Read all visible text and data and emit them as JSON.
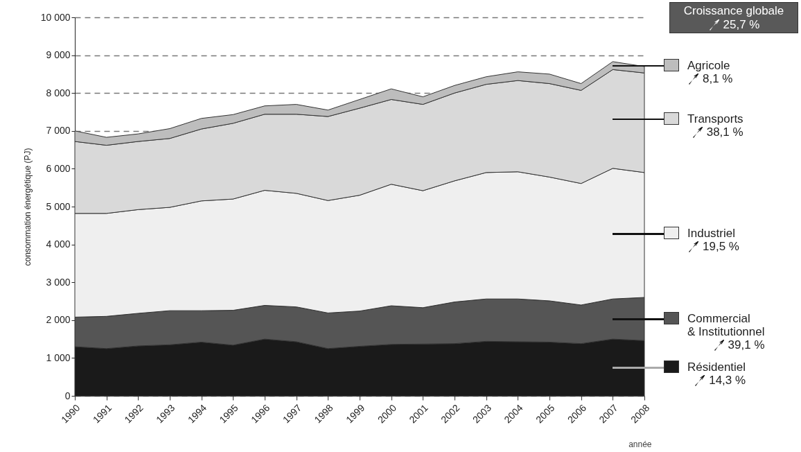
{
  "chart_data": {
    "type": "area",
    "stacked": true,
    "ylabel": "consommation énergétique (PJ)",
    "xlabel": "année",
    "categories": [
      "1990",
      "1991",
      "1992",
      "1993",
      "1994",
      "1995",
      "1996",
      "1997",
      "1998",
      "1999",
      "2000",
      "2001",
      "2002",
      "2003",
      "2004",
      "2005",
      "2006",
      "2007",
      "2008"
    ],
    "series": [
      {
        "name": "Résidentiel",
        "color": "#1a1a1a",
        "values": [
          1300,
          1250,
          1320,
          1350,
          1420,
          1340,
          1500,
          1430,
          1250,
          1310,
          1360,
          1370,
          1380,
          1440,
          1430,
          1420,
          1380,
          1500,
          1460
        ]
      },
      {
        "name": "Commercial\n& Institutionnel",
        "color": "#555555",
        "values": [
          780,
          850,
          860,
          900,
          830,
          920,
          890,
          920,
          940,
          930,
          1020,
          960,
          1100,
          1120,
          1130,
          1090,
          1020,
          1060,
          1140
        ]
      },
      {
        "name": "Industriel",
        "color": "#efefef",
        "values": [
          2740,
          2720,
          2740,
          2730,
          2900,
          2940,
          3040,
          3000,
          2970,
          3060,
          3210,
          3090,
          3200,
          3340,
          3360,
          3270,
          3210,
          3450,
          3300
        ]
      },
      {
        "name": "Transports",
        "color": "#d9d9d9",
        "values": [
          1900,
          1800,
          1800,
          1820,
          1900,
          2000,
          2010,
          2090,
          2220,
          2300,
          2240,
          2280,
          2320,
          2330,
          2410,
          2470,
          2460,
          2610,
          2630
        ]
      },
      {
        "name": "Agricole",
        "color": "#bdbdbd",
        "values": [
          280,
          210,
          200,
          260,
          280,
          230,
          220,
          260,
          170,
          230,
          280,
          200,
          200,
          200,
          230,
          250,
          180,
          210,
          170
        ]
      }
    ],
    "ylim": [
      0,
      10000
    ],
    "yticks": [
      0,
      {
        "value": 1000,
        "label": "1 000"
      },
      {
        "value": 2000,
        "label": "2 000"
      },
      {
        "value": 3000,
        "label": "3 000"
      },
      {
        "value": 4000,
        "label": "4 000"
      },
      {
        "value": 5000,
        "label": "5 000"
      },
      {
        "value": 6000,
        "label": "6 000"
      },
      {
        "value": 7000,
        "label": "7 000"
      },
      {
        "value": 8000,
        "label": "8 000"
      },
      {
        "value": 9000,
        "label": "9 000"
      },
      {
        "value": 10000,
        "label": "10 000"
      }
    ],
    "grid": "y",
    "legend": "right",
    "annotations": [
      "Croissance globale",
      "25,7 %",
      "8,1 %",
      "38,1 %",
      "19,5 %",
      "39,1 %",
      "14,3 %"
    ]
  }
}
